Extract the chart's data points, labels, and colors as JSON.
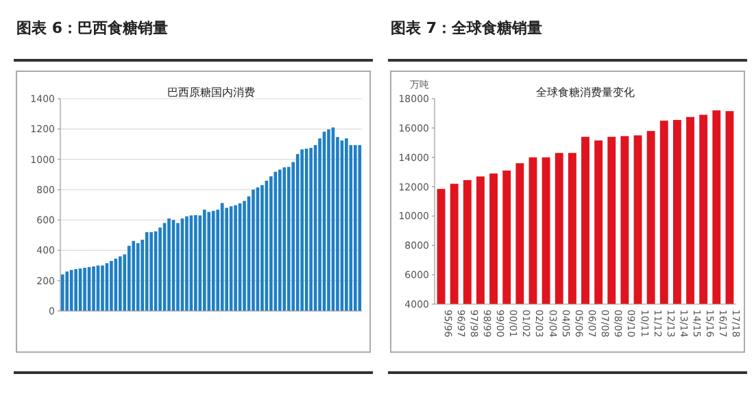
{
  "chart_data": [
    {
      "type": "bar",
      "title": "图表 6：巴西食糖销量",
      "subtitle": "巴西原糖国内消费",
      "categories": [
        null,
        null,
        null,
        null,
        null,
        null,
        null,
        null,
        null,
        null,
        null,
        null,
        null,
        null,
        null,
        null,
        null,
        null,
        null,
        null,
        null,
        null,
        null,
        null,
        null,
        null,
        null,
        null,
        null,
        null,
        null,
        null,
        null,
        null,
        null,
        null,
        null,
        null,
        null,
        null,
        null,
        null,
        null,
        null,
        null,
        null,
        null,
        null,
        null,
        null,
        null,
        null,
        null,
        null,
        null,
        null,
        null,
        null,
        null,
        null,
        null,
        null,
        null,
        null,
        null,
        null,
        null,
        null
      ],
      "values": [
        241,
        260,
        270,
        276,
        280,
        285,
        290,
        294,
        300,
        300,
        315,
        330,
        345,
        360,
        373,
        430,
        462,
        447,
        470,
        520,
        520,
        525,
        550,
        580,
        610,
        600,
        580,
        610,
        624,
        630,
        632,
        630,
        668,
        653,
        660,
        668,
        712,
        680,
        690,
        697,
        710,
        726,
        756,
        800,
        815,
        830,
        859,
        888,
        918,
        932,
        947,
        950,
        982,
        1035,
        1065,
        1070,
        1075,
        1094,
        1138,
        1182,
        1197,
        1210,
        1147,
        1124,
        1138,
        1094,
        1094,
        1094
      ],
      "color": "#1f7fc4",
      "ylim": [
        0,
        1400
      ],
      "yticks": [
        0,
        200,
        400,
        600,
        800,
        1000,
        1200,
        1400
      ],
      "grid": "y",
      "tick_labels": "y"
    },
    {
      "type": "bar",
      "title": "图表 7：全球食糖销量",
      "subtitle": "全球食糖消费量变化",
      "ylabel": "万吨",
      "categories": [
        "95/96",
        "96/97",
        "97/98",
        "98/99",
        "99/00",
        "00/01",
        "01/02",
        "02/03",
        "03/04",
        "04/05",
        "05/06",
        "06/07",
        "07/08",
        "08/09",
        "09/10",
        "10/11",
        "11/12",
        "12/13",
        "13/14",
        "14/15",
        "15/16",
        "16/17",
        "17/18"
      ],
      "values": [
        11850,
        12200,
        12450,
        12700,
        12900,
        13100,
        13600,
        14000,
        14000,
        14300,
        14300,
        15400,
        15150,
        15400,
        15450,
        15500,
        15800,
        16500,
        16550,
        16750,
        16900,
        17200,
        17150
      ],
      "color": "#e0141e",
      "ylim": [
        4000,
        18000
      ],
      "yticks": [
        4000,
        6000,
        8000,
        10000,
        12000,
        14000,
        16000,
        18000
      ]
    }
  ]
}
